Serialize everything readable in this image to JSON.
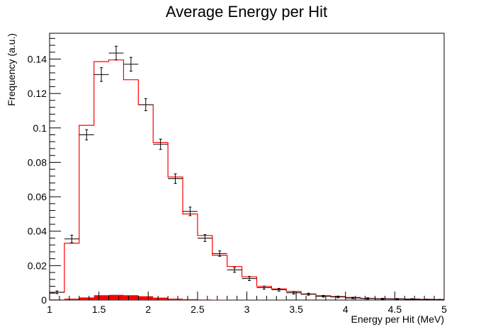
{
  "chart_data": {
    "type": "bar",
    "title": "Average Energy per Hit",
    "xlabel": "Energy per Hit (MeV)",
    "ylabel": "Frequency (a.u.)",
    "xlim": [
      1,
      5
    ],
    "ylim": [
      0,
      0.155
    ],
    "grid": false,
    "legend": "none",
    "x_ticks": [
      1,
      1.5,
      2,
      2.5,
      3,
      3.5,
      4,
      4.5,
      5
    ],
    "x_tick_labels": [
      "1",
      "1.5",
      "2",
      "2.5",
      "3",
      "3.5",
      "4",
      "4.5",
      "5"
    ],
    "y_ticks": [
      0,
      0.02,
      0.04,
      0.06,
      0.08,
      0.1,
      0.12,
      0.14
    ],
    "y_tick_labels": [
      "0",
      "0.02",
      "0.04",
      "0.06",
      "0.08",
      "0.1",
      "0.12",
      "0.14"
    ],
    "bin_edges": [
      1,
      1.15,
      1.3,
      1.45,
      1.6,
      1.75,
      1.9,
      2.05,
      2.2,
      2.35,
      2.5,
      2.65,
      2.8,
      2.95,
      3.1,
      3.25,
      3.4,
      3.55,
      3.7,
      3.85,
      4.0,
      4.15,
      4.3,
      4.45,
      4.6,
      4.75,
      4.9,
      5.0
    ],
    "series": [
      {
        "style": "step-line",
        "color": "#ff0000",
        "values": [
          0.0045,
          0.033,
          0.1015,
          0.1385,
          0.1395,
          0.128,
          0.1135,
          0.0915,
          0.0715,
          0.05,
          0.0375,
          0.026,
          0.0195,
          0.0135,
          0.008,
          0.0065,
          0.005,
          0.0035,
          0.0025,
          0.002,
          0.0015,
          0.001,
          0.0008,
          0.0007,
          0.0005,
          0.0004,
          0.0003
        ]
      },
      {
        "style": "points-with-errors",
        "color": "#000000",
        "values": [
          0.0045,
          0.0355,
          0.096,
          0.131,
          0.1435,
          0.137,
          0.1135,
          0.0905,
          0.0705,
          0.0515,
          0.036,
          0.027,
          0.0175,
          0.0125,
          0.0072,
          0.006,
          0.0042,
          0.0034,
          0.0022,
          0.0018,
          0.0012,
          0.0009,
          0.0007,
          0.0006,
          0.0005,
          0.0003,
          0.0002
        ],
        "errors": [
          0.0008,
          0.0022,
          0.003,
          0.004,
          0.004,
          0.004,
          0.0035,
          0.003,
          0.0028,
          0.0025,
          0.002,
          0.0016,
          0.0014,
          0.0012,
          0.0009,
          0.0008,
          0.0007,
          0.0006,
          0.0005,
          0.0005,
          0.0004,
          0.0004,
          0.0003,
          0.0003,
          0.0003,
          0.0002,
          0.0002
        ]
      },
      {
        "style": "filled",
        "color": "#ff0000",
        "values": [
          0.0003,
          0.0008,
          0.0015,
          0.0028,
          0.003,
          0.0028,
          0.0022,
          0.0014,
          0.0008,
          0.0005,
          0.0003,
          0.0002,
          0.0001,
          0.0001,
          0.0001,
          0.0001,
          0,
          0,
          0,
          0,
          0,
          0,
          0,
          0,
          0,
          0,
          0
        ]
      }
    ]
  }
}
